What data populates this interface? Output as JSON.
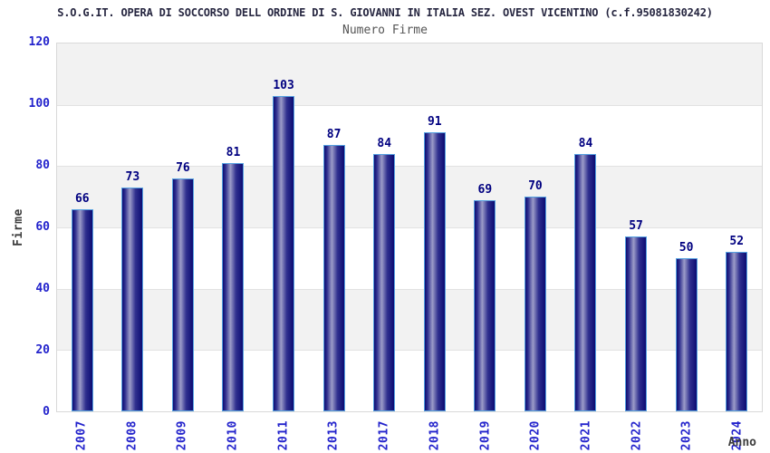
{
  "chart_data": {
    "type": "bar",
    "title": "S.O.G.IT. OPERA DI SOCCORSO DELL ORDINE DI S. GIOVANNI IN ITALIA SEZ. OVEST VICENTINO (c.f.95081830242)",
    "subtitle": "Numero Firme",
    "xlabel": "Anno",
    "ylabel": "Firme",
    "categories": [
      "2007",
      "2008",
      "2009",
      "2010",
      "2011",
      "2013",
      "2017",
      "2018",
      "2019",
      "2020",
      "2021",
      "2022",
      "2023",
      "2024"
    ],
    "values": [
      66,
      73,
      76,
      81,
      103,
      87,
      84,
      91,
      69,
      70,
      84,
      57,
      50,
      52
    ],
    "ylim": [
      0,
      120
    ],
    "ytick_step": 20,
    "grid": "horizontal-bands-alternating",
    "legend": "none",
    "bar_value_labels": true
  },
  "colors": {
    "title": "#262640",
    "subtitle": "#555555",
    "tick_label": "#2323cc",
    "axis_title": "#3d3d3d",
    "value_label": "#000080",
    "band_gray": "#f2f2f2",
    "band_white": "#ffffff",
    "gridline": "#e2e2e2",
    "plot_border": "#d9d9d9",
    "bar_border": "#55a0e0",
    "bar_dark": "#0c0c72",
    "bar_mid": "#30308f",
    "bar_light": "#9c9cc8",
    "background": "#ffffff"
  }
}
